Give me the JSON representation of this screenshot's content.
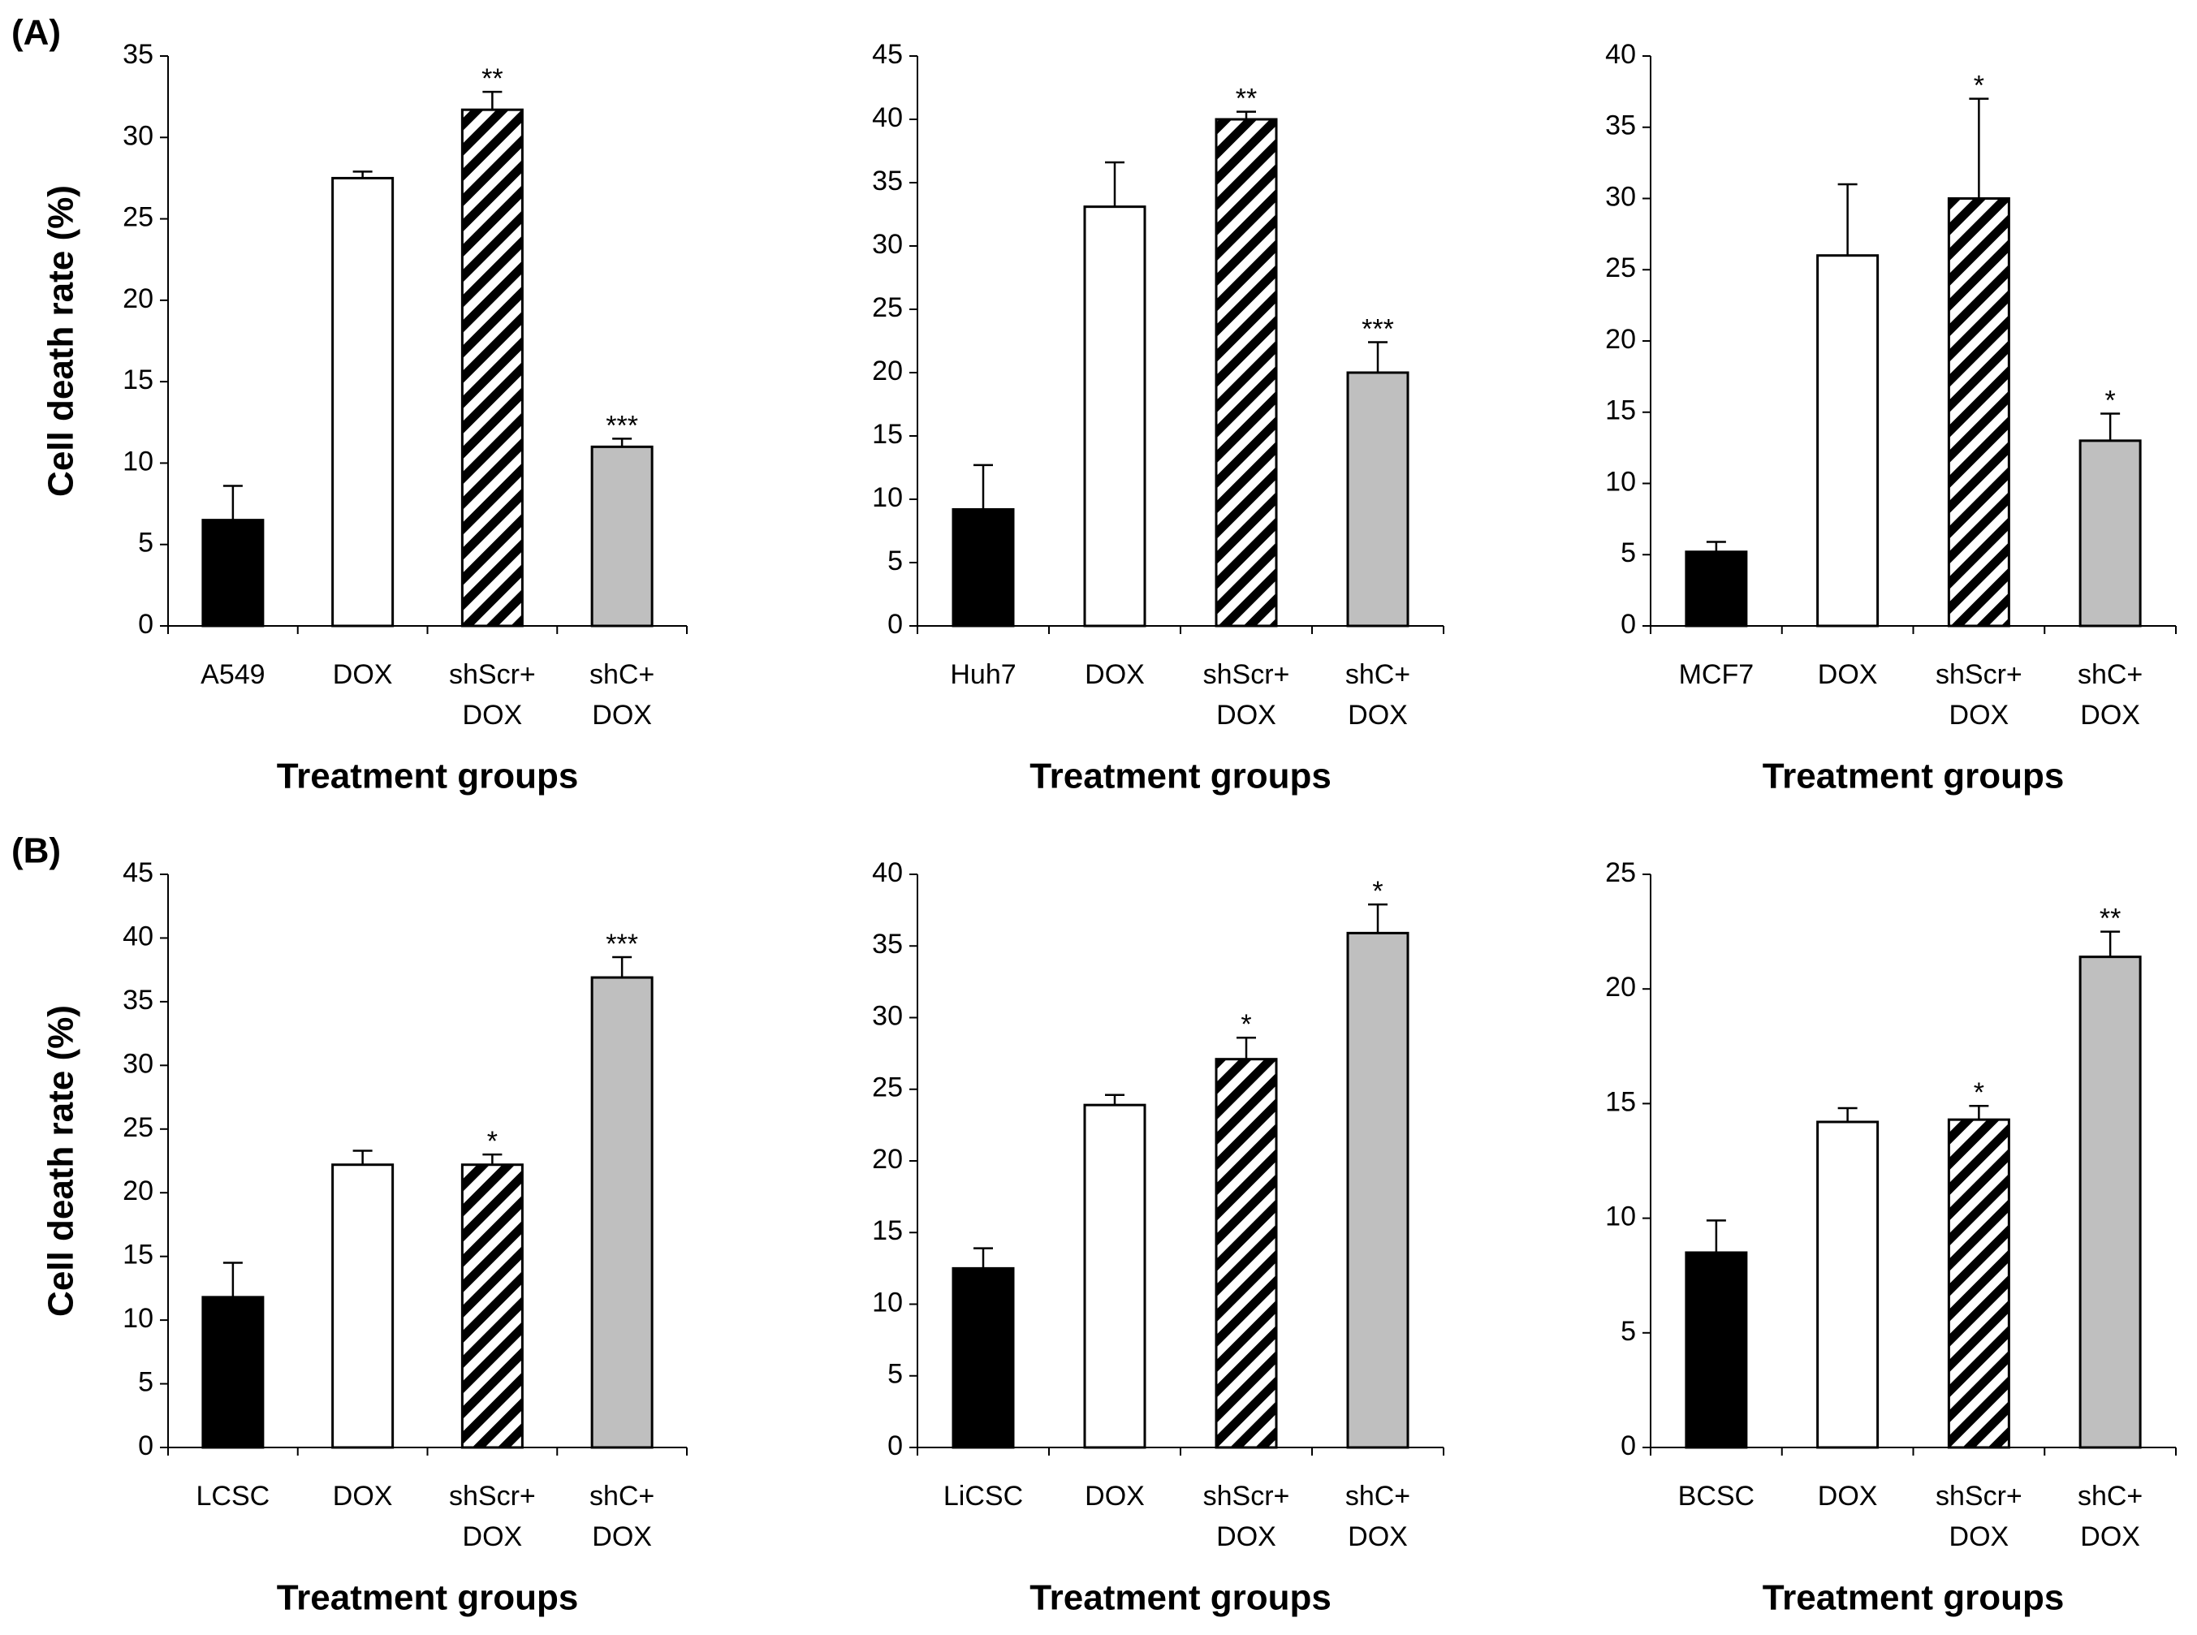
{
  "chart_data": [
    {
      "type": "bar",
      "panel_label": "(A)",
      "ylabel": "Cell death rate (%)",
      "xlabel": "Treatment groups",
      "categories": [
        "A549",
        "DOX",
        "shScr+\nDOX",
        "shC+\nDOX"
      ],
      "values": [
        6.5,
        27.5,
        31.7,
        11.0
      ],
      "errors": [
        2.1,
        0.4,
        1.1,
        0.5
      ],
      "annotations": [
        null,
        null,
        "**",
        "***"
      ],
      "bar_fills": [
        "#000000",
        "#ffffff",
        "hatch",
        "#bfbfbf"
      ],
      "ylim": [
        0,
        35
      ],
      "yticks": [
        0,
        5,
        10,
        15,
        20,
        25,
        30,
        35
      ]
    },
    {
      "type": "bar",
      "xlabel": "Treatment groups",
      "categories": [
        "Huh7",
        "DOX",
        "shScr+\nDOX",
        "shC+\nDOX"
      ],
      "values": [
        9.2,
        33.1,
        40.0,
        20.0
      ],
      "errors": [
        3.5,
        3.5,
        0.6,
        2.4
      ],
      "annotations": [
        null,
        null,
        "**",
        "***"
      ],
      "bar_fills": [
        "#000000",
        "#ffffff",
        "hatch",
        "#bfbfbf"
      ],
      "ylim": [
        0,
        45
      ],
      "yticks": [
        0,
        5,
        10,
        15,
        20,
        25,
        30,
        35,
        40,
        45
      ]
    },
    {
      "type": "bar",
      "xlabel": "Treatment groups",
      "categories": [
        "MCF7",
        "DOX",
        "shScr+\nDOX",
        "shC+\nDOX"
      ],
      "values": [
        5.2,
        26,
        30,
        13
      ],
      "errors": [
        0.7,
        5,
        7,
        1.9
      ],
      "annotations": [
        null,
        null,
        "*",
        "*"
      ],
      "bar_fills": [
        "#000000",
        "#ffffff",
        "hatch",
        "#bfbfbf"
      ],
      "ylim": [
        0,
        40
      ],
      "yticks": [
        0,
        5,
        10,
        15,
        20,
        25,
        30,
        35,
        40
      ]
    },
    {
      "type": "bar",
      "panel_label": "(B)",
      "ylabel": "Cell death rate (%)",
      "xlabel": "Treatment groups",
      "categories": [
        "LCSC",
        "DOX",
        "shScr+\nDOX",
        "shC+\nDOX"
      ],
      "values": [
        11.8,
        22.2,
        22.2,
        36.9
      ],
      "errors": [
        2.7,
        1.1,
        0.8,
        1.6
      ],
      "annotations": [
        null,
        null,
        "*",
        "***"
      ],
      "bar_fills": [
        "#000000",
        "#ffffff",
        "hatch",
        "#bfbfbf"
      ],
      "ylim": [
        0,
        45
      ],
      "yticks": [
        0,
        5,
        10,
        15,
        20,
        25,
        30,
        35,
        40,
        45
      ]
    },
    {
      "type": "bar",
      "xlabel": "Treatment groups",
      "categories": [
        "LiCSC",
        "DOX",
        "shScr+\nDOX",
        "shC+\nDOX"
      ],
      "values": [
        12.5,
        23.9,
        27.1,
        35.9
      ],
      "errors": [
        1.4,
        0.7,
        1.5,
        2.0
      ],
      "annotations": [
        null,
        null,
        "*",
        "*"
      ],
      "bar_fills": [
        "#000000",
        "#ffffff",
        "hatch",
        "#bfbfbf"
      ],
      "ylim": [
        0,
        40
      ],
      "yticks": [
        0,
        5,
        10,
        15,
        20,
        25,
        30,
        35,
        40
      ]
    },
    {
      "type": "bar",
      "xlabel": "Treatment groups",
      "categories": [
        "BCSC",
        "DOX",
        "shScr+\nDOX",
        "shC+\nDOX"
      ],
      "values": [
        8.5,
        14.2,
        14.3,
        21.4
      ],
      "errors": [
        1.4,
        0.6,
        0.6,
        1.1
      ],
      "annotations": [
        null,
        null,
        "*",
        "**"
      ],
      "bar_fills": [
        "#000000",
        "#ffffff",
        "hatch",
        "#bfbfbf"
      ],
      "ylim": [
        0,
        25
      ],
      "yticks": [
        0,
        5,
        10,
        15,
        20,
        25
      ]
    }
  ]
}
